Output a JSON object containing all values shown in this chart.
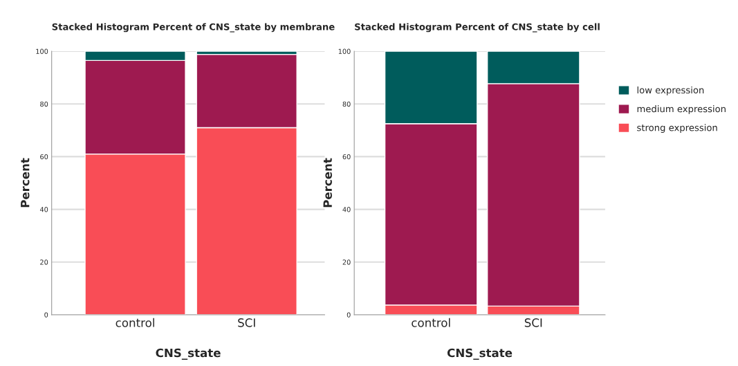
{
  "chart_data": [
    {
      "type": "bar",
      "stacked": true,
      "title": "Stacked Histogram Percent of CNS_state by membrane",
      "xlabel": "CNS_state",
      "ylabel": "Percent",
      "categories": [
        "control",
        "SCI"
      ],
      "ylim": [
        0,
        100
      ],
      "yticks": [
        0,
        20,
        40,
        60,
        80,
        100
      ],
      "grid": "y",
      "legend": "right",
      "series": [
        {
          "name": "strong expression",
          "color": "#f94d56",
          "values": [
            61,
            71
          ]
        },
        {
          "name": "medium expression",
          "color": "#9e1a50",
          "values": [
            35.5,
            27.8
          ]
        },
        {
          "name": "low expression",
          "color": "#005c5c",
          "values": [
            3.5,
            1.2
          ]
        }
      ]
    },
    {
      "type": "bar",
      "stacked": true,
      "title": "Stacked Histogram Percent of CNS_state by cell",
      "xlabel": "CNS_state",
      "ylabel": "Percent",
      "categories": [
        "control",
        "SCI"
      ],
      "ylim": [
        0,
        100
      ],
      "yticks": [
        0,
        20,
        40,
        60,
        80,
        100
      ],
      "grid": "y",
      "legend": "right",
      "series": [
        {
          "name": "strong expression",
          "color": "#f94d56",
          "values": [
            3.7,
            3.3
          ]
        },
        {
          "name": "medium expression",
          "color": "#9e1a50",
          "values": [
            68.8,
            84.4
          ]
        },
        {
          "name": "low expression",
          "color": "#005c5c",
          "values": [
            27.5,
            12.3
          ]
        }
      ]
    }
  ]
}
